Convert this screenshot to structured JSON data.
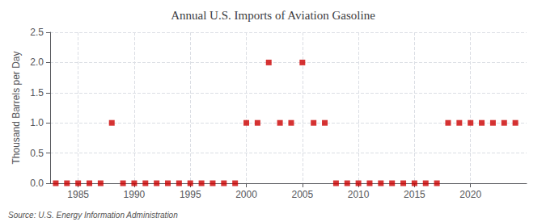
{
  "chart_data": {
    "type": "scatter",
    "title": "Annual U.S. Imports of Aviation Gasoline",
    "y_label": "Thousand Barrels per Day",
    "annotations": [
      "Source: U.S. Energy Information Administration"
    ],
    "x": [
      1983,
      1984,
      1985,
      1986,
      1987,
      1988,
      1989,
      1990,
      1991,
      1992,
      1993,
      1994,
      1995,
      1996,
      1997,
      1998,
      1999,
      2000,
      2001,
      2002,
      2003,
      2004,
      2005,
      2006,
      2007,
      2008,
      2009,
      2010,
      2011,
      2012,
      2013,
      2014,
      2015,
      2016,
      2017,
      2018,
      2019,
      2020,
      2021,
      2022,
      2023,
      2024
    ],
    "values": [
      0,
      0,
      0,
      0,
      0,
      1,
      0,
      0,
      0,
      0,
      0,
      0,
      0,
      0,
      0,
      0,
      0,
      1,
      1,
      2,
      1,
      1,
      2,
      1,
      1,
      0,
      0,
      0,
      0,
      0,
      0,
      0,
      0,
      0,
      0,
      1,
      1,
      1,
      1,
      1,
      1,
      1
    ],
    "color": "#cc0000",
    "marker": "square",
    "xlim": [
      1982.5,
      2025
    ],
    "xticks": [
      1985,
      1990,
      1995,
      2000,
      2005,
      2010,
      2015,
      2020
    ],
    "ylim": [
      0,
      2.5
    ],
    "yticks": [
      {
        "value": 0.0,
        "label": "0.0"
      },
      0.5,
      {
        "value": 1.0,
        "label": "1.0"
      },
      1.5,
      {
        "value": 2.0,
        "label": "2.0"
      },
      2.5
    ],
    "grid": true
  }
}
